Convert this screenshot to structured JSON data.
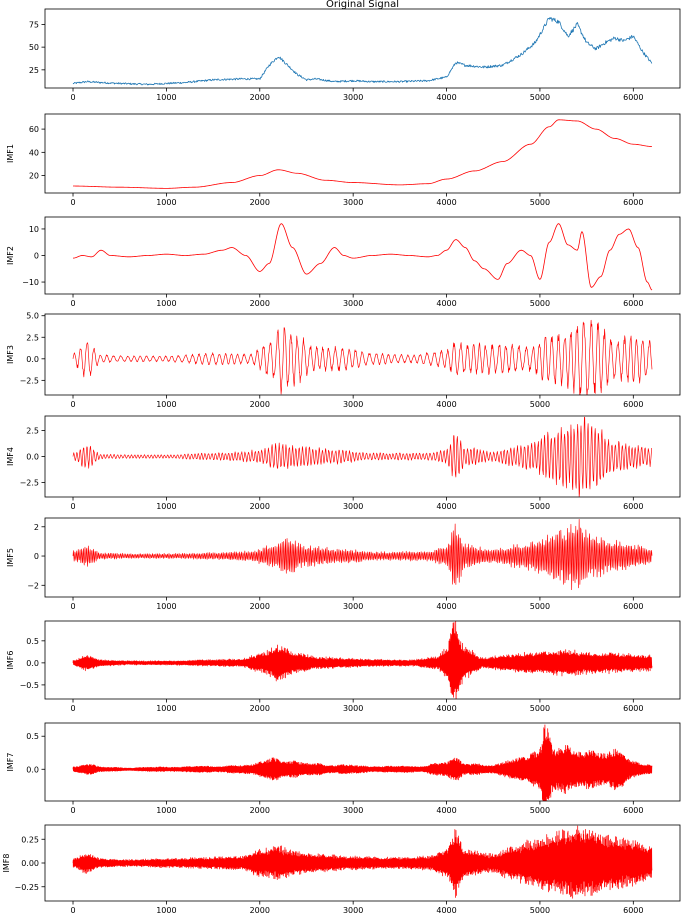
{
  "chart_data": [
    {
      "type": "line",
      "title": "Original Signal",
      "ylabel": "",
      "color": "#1f77b4",
      "xlim": [
        -300,
        6500
      ],
      "ylim": [
        5,
        92
      ],
      "x_ticks": [
        0,
        1000,
        2000,
        3000,
        4000,
        5000,
        6000
      ],
      "y_ticks": [
        25,
        50,
        75
      ],
      "x_tick_labels": [
        "0",
        "1000",
        "2000",
        "3000",
        "4000",
        "5000",
        "6000"
      ],
      "y_tick_labels": [
        "25",
        "50",
        "75"
      ],
      "x": [
        0,
        150,
        300,
        500,
        800,
        1000,
        1200,
        1500,
        1800,
        2000,
        2100,
        2200,
        2300,
        2400,
        2500,
        2600,
        2800,
        3000,
        3200,
        3500,
        3800,
        4000,
        4100,
        4200,
        4400,
        4600,
        4800,
        4950,
        5100,
        5200,
        5300,
        5400,
        5500,
        5600,
        5700,
        5800,
        5900,
        6000,
        6100,
        6200
      ],
      "values": [
        10,
        12,
        11,
        10,
        9,
        10,
        11,
        14,
        15,
        15,
        30,
        40,
        30,
        20,
        14,
        15,
        12,
        13,
        12,
        12,
        13,
        17,
        33,
        30,
        28,
        30,
        42,
        55,
        82,
        78,
        62,
        75,
        55,
        48,
        55,
        60,
        57,
        62,
        45,
        32
      ],
      "noise": 1.8
    },
    {
      "type": "line",
      "title": "",
      "ylabel": "IMF1",
      "color": "#ff0000",
      "xlim": [
        -300,
        6500
      ],
      "ylim": [
        5,
        73
      ],
      "x_ticks": [
        0,
        1000,
        2000,
        3000,
        4000,
        5000,
        6000
      ],
      "y_ticks": [
        20,
        40,
        60
      ],
      "x_tick_labels": [
        "0",
        "1000",
        "2000",
        "3000",
        "4000",
        "5000",
        "6000"
      ],
      "y_tick_labels": [
        "20",
        "40",
        "60"
      ],
      "x": [
        0,
        500,
        1000,
        1300,
        1700,
        2000,
        2200,
        2400,
        2700,
        3000,
        3500,
        3800,
        4000,
        4300,
        4600,
        4900,
        5100,
        5200,
        5400,
        5600,
        5800,
        6000,
        6200
      ],
      "values": [
        11,
        10,
        9,
        10,
        14,
        20,
        25,
        22,
        16,
        14,
        12,
        13,
        17,
        24,
        32,
        47,
        62,
        68,
        67,
        60,
        52,
        47,
        45
      ],
      "noise": 0
    },
    {
      "type": "line",
      "title": "",
      "ylabel": "IMF2",
      "color": "#ff0000",
      "xlim": [
        -300,
        6500
      ],
      "ylim": [
        -14.5,
        14.5
      ],
      "x_ticks": [
        0,
        1000,
        2000,
        3000,
        4000,
        5000,
        6000
      ],
      "y_ticks": [
        -10,
        0,
        10
      ],
      "x_tick_labels": [
        "0",
        "1000",
        "2000",
        "3000",
        "4000",
        "5000",
        "6000"
      ],
      "y_tick_labels": [
        "−10",
        "0",
        "10"
      ],
      "x": [
        0,
        100,
        200,
        300,
        400,
        600,
        800,
        1000,
        1200,
        1400,
        1600,
        1700,
        1850,
        2000,
        2100,
        2230,
        2350,
        2500,
        2650,
        2800,
        2900,
        3000,
        3200,
        3400,
        3600,
        3800,
        3900,
        4000,
        4100,
        4200,
        4300,
        4400,
        4550,
        4650,
        4800,
        4900,
        5000,
        5100,
        5200,
        5300,
        5400,
        5450,
        5550,
        5650,
        5750,
        5850,
        5950,
        6050,
        6150,
        6200
      ],
      "values": [
        -1,
        0,
        -0.5,
        2,
        0,
        -0.5,
        0,
        0.5,
        0,
        0.5,
        2,
        3,
        0,
        -6,
        -3,
        12,
        3,
        -7,
        -3,
        3,
        0,
        -1,
        0,
        0.5,
        0,
        -0.5,
        0,
        2,
        6,
        3,
        -2,
        -5,
        -9,
        -3,
        2,
        0,
        -9,
        5,
        12,
        4,
        2,
        9,
        -12,
        -8,
        2,
        8,
        10,
        3,
        -10,
        -13
      ],
      "noise": 0
    },
    {
      "type": "line",
      "title": "",
      "ylabel": "IMF3",
      "color": "#ff0000",
      "xlim": [
        -300,
        6500
      ],
      "ylim": [
        -4.2,
        5.2
      ],
      "x_ticks": [
        0,
        1000,
        2000,
        3000,
        4000,
        5000,
        6000
      ],
      "y_ticks": [
        -2.5,
        0,
        2.5,
        5
      ],
      "x_tick_labels": [
        "0",
        "1000",
        "2000",
        "3000",
        "4000",
        "5000",
        "6000"
      ],
      "y_tick_labels": [
        "−2.5",
        "0.0",
        "2.5",
        "5.0"
      ],
      "period": 70,
      "env_x": [
        0,
        150,
        300,
        600,
        1000,
        1500,
        1900,
        2100,
        2250,
        2400,
        2600,
        2900,
        3200,
        3600,
        4000,
        4100,
        4300,
        4600,
        4900,
        5100,
        5300,
        5450,
        5600,
        5800,
        6000,
        6200
      ],
      "env_y": [
        0.6,
        2.0,
        0.4,
        0.3,
        0.3,
        0.6,
        0.5,
        1.8,
        3.5,
        2.5,
        1.2,
        1.2,
        0.6,
        0.4,
        0.9,
        1.8,
        1.5,
        1.5,
        1.3,
        2.5,
        2.8,
        4.2,
        3.8,
        2.0,
        2.5,
        1.8
      ]
    },
    {
      "type": "line",
      "title": "",
      "ylabel": "IMF4",
      "color": "#ff0000",
      "xlim": [
        -300,
        6500
      ],
      "ylim": [
        -3.9,
        3.9
      ],
      "x_ticks": [
        0,
        1000,
        2000,
        3000,
        4000,
        5000,
        6000
      ],
      "y_ticks": [
        -2.5,
        0,
        2.5
      ],
      "x_tick_labels": [
        "0",
        "1000",
        "2000",
        "3000",
        "4000",
        "5000",
        "6000"
      ],
      "y_tick_labels": [
        "−2.5",
        "0.0",
        "2.5"
      ],
      "period": 36,
      "env_x": [
        0,
        150,
        300,
        600,
        1000,
        1500,
        1800,
        2000,
        2200,
        2400,
        2800,
        3200,
        3800,
        4000,
        4100,
        4200,
        4500,
        4700,
        4900,
        5100,
        5300,
        5450,
        5600,
        5800,
        6000,
        6200
      ],
      "env_y": [
        0.3,
        1.0,
        0.2,
        0.15,
        0.15,
        0.3,
        0.4,
        0.6,
        1.1,
        0.9,
        0.6,
        0.3,
        0.3,
        0.6,
        2.0,
        0.8,
        0.4,
        0.8,
        1.2,
        2.0,
        2.6,
        3.4,
        2.5,
        1.3,
        1.0,
        0.8
      ]
    },
    {
      "type": "line",
      "title": "",
      "ylabel": "IMF5",
      "color": "#ff0000",
      "xlim": [
        -300,
        6500
      ],
      "ylim": [
        -2.8,
        2.6
      ],
      "x_ticks": [
        0,
        1000,
        2000,
        3000,
        4000,
        5000,
        6000
      ],
      "y_ticks": [
        -2,
        0,
        2
      ],
      "x_tick_labels": [
        "0",
        "1000",
        "2000",
        "3000",
        "4000",
        "5000",
        "6000"
      ],
      "y_tick_labels": [
        "−2",
        "0",
        "2"
      ],
      "period": 18,
      "env_x": [
        0,
        150,
        300,
        600,
        1000,
        1500,
        1900,
        2100,
        2300,
        2500,
        2900,
        3300,
        3800,
        4000,
        4100,
        4200,
        4500,
        4800,
        5000,
        5200,
        5400,
        5500,
        5600,
        5800,
        6000,
        6200
      ],
      "env_y": [
        0.3,
        0.6,
        0.2,
        0.15,
        0.15,
        0.2,
        0.3,
        0.6,
        1.1,
        0.6,
        0.4,
        0.25,
        0.3,
        0.6,
        2.0,
        0.7,
        0.4,
        0.7,
        1.0,
        1.5,
        2.1,
        1.6,
        1.2,
        0.9,
        0.7,
        0.5
      ]
    },
    {
      "type": "line",
      "title": "",
      "ylabel": "IMF6",
      "color": "#ff0000",
      "xlim": [
        -300,
        6500
      ],
      "ylim": [
        -0.82,
        0.95
      ],
      "x_ticks": [
        0,
        1000,
        2000,
        3000,
        4000,
        5000,
        6000
      ],
      "y_ticks": [
        -0.5,
        0,
        0.5
      ],
      "x_tick_labels": [
        "0",
        "1000",
        "2000",
        "3000",
        "4000",
        "5000",
        "6000"
      ],
      "y_tick_labels": [
        "−0.5",
        "0.0",
        "0.5"
      ],
      "period": 9,
      "env_x": [
        0,
        150,
        300,
        600,
        1000,
        1400,
        1800,
        2000,
        2200,
        2400,
        2600,
        2900,
        3200,
        3600,
        3900,
        4000,
        4080,
        4200,
        4400,
        4600,
        4900,
        5100,
        5300,
        5500,
        5700,
        5900,
        6200
      ],
      "env_y": [
        0.05,
        0.15,
        0.06,
        0.04,
        0.04,
        0.06,
        0.08,
        0.18,
        0.35,
        0.2,
        0.12,
        0.1,
        0.07,
        0.06,
        0.12,
        0.3,
        0.85,
        0.3,
        0.1,
        0.15,
        0.2,
        0.22,
        0.25,
        0.22,
        0.2,
        0.18,
        0.15
      ]
    },
    {
      "type": "line",
      "title": "",
      "ylabel": "IMF7",
      "color": "#ff0000",
      "xlim": [
        -300,
        6500
      ],
      "ylim": [
        -0.48,
        0.7
      ],
      "x_ticks": [
        0,
        1000,
        2000,
        3000,
        4000,
        5000,
        6000
      ],
      "y_ticks": [
        0,
        0.5
      ],
      "x_tick_labels": [
        "0",
        "1000",
        "2000",
        "3000",
        "4000",
        "5000",
        "6000"
      ],
      "y_tick_labels": [
        "0.0",
        "0.5"
      ],
      "period": 6,
      "env_x": [
        0,
        150,
        300,
        600,
        1000,
        1500,
        1900,
        2100,
        2300,
        2500,
        2800,
        3200,
        3700,
        4000,
        4100,
        4200,
        4500,
        4800,
        5000,
        5050,
        5150,
        5300,
        5500,
        5700,
        5850,
        6000,
        6200
      ],
      "env_y": [
        0.03,
        0.08,
        0.03,
        0.02,
        0.03,
        0.04,
        0.06,
        0.15,
        0.12,
        0.08,
        0.06,
        0.04,
        0.04,
        0.1,
        0.15,
        0.08,
        0.06,
        0.15,
        0.3,
        0.6,
        0.25,
        0.3,
        0.25,
        0.2,
        0.3,
        0.1,
        0.06
      ]
    },
    {
      "type": "line",
      "title": "",
      "ylabel": "IMF8",
      "color": "#ff0000",
      "xlim": [
        -300,
        6500
      ],
      "ylim": [
        -0.4,
        0.4
      ],
      "x_ticks": [
        0,
        1000,
        2000,
        3000,
        4000,
        5000,
        6000
      ],
      "y_ticks": [
        -0.25,
        0,
        0.25
      ],
      "x_tick_labels": [
        "0",
        "1000",
        "2000",
        "3000",
        "4000",
        "5000",
        "6000"
      ],
      "y_tick_labels": [
        "−0.25",
        "0.00",
        "0.25"
      ],
      "period": 4,
      "env_x": [
        0,
        150,
        300,
        600,
        1000,
        1400,
        1800,
        2000,
        2200,
        2400,
        2600,
        3000,
        3400,
        3800,
        4000,
        4100,
        4200,
        4500,
        4700,
        4900,
        5100,
        5300,
        5400,
        5500,
        5700,
        6000,
        6200
      ],
      "env_y": [
        0.04,
        0.09,
        0.04,
        0.03,
        0.04,
        0.05,
        0.06,
        0.12,
        0.15,
        0.1,
        0.08,
        0.06,
        0.05,
        0.06,
        0.12,
        0.3,
        0.12,
        0.08,
        0.15,
        0.2,
        0.25,
        0.3,
        0.35,
        0.3,
        0.25,
        0.2,
        0.15
      ]
    }
  ]
}
